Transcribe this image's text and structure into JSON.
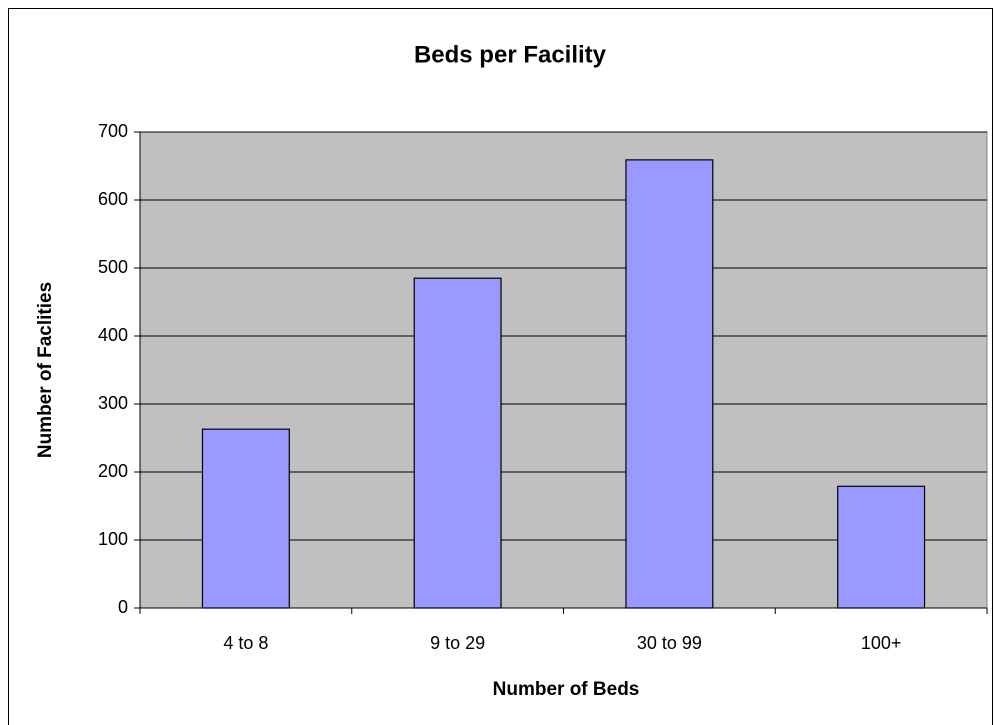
{
  "chart_data": {
    "type": "bar",
    "title": "Beds per Facility",
    "x_label": "Number of Beds",
    "y_label": "Number of Faclities",
    "categories": [
      "4 to 8",
      "9 to 29",
      "30 to 99",
      "100+"
    ],
    "values": [
      263,
      485,
      659,
      179
    ],
    "color": "#9999ff",
    "ylim": [
      0,
      700
    ],
    "yticks": [
      0,
      100,
      200,
      300,
      400,
      500,
      600,
      700
    ],
    "grid": true
  }
}
